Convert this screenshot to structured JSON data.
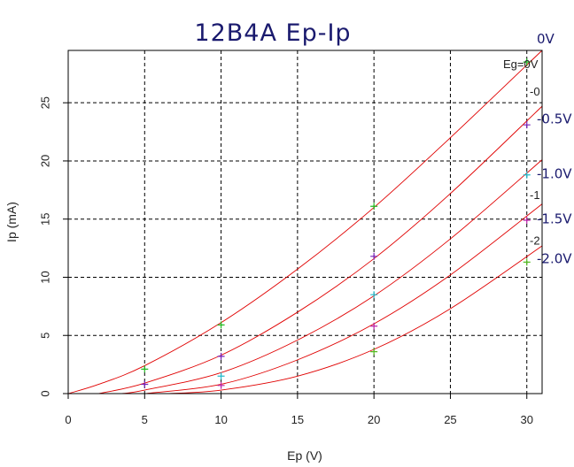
{
  "chart_data": {
    "type": "line",
    "title": "12B4A Ep-Ip",
    "xlabel": "Ep (V)",
    "ylabel": "Ip (mA)",
    "xlim": [
      0,
      31
    ],
    "ylim": [
      0,
      29.5
    ],
    "x_ticks": [
      0,
      5,
      10,
      15,
      20,
      25,
      30
    ],
    "y_ticks": [
      0,
      5,
      10,
      15,
      20,
      25
    ],
    "grid": true,
    "legend_title": "Eg=0V",
    "curve_labels": [
      {
        "text": "0V",
        "y": 30.5
      },
      {
        "text": "-0.5V",
        "y": 23.6
      },
      {
        "text": "-1.0V",
        "y": 18.9
      },
      {
        "text": "-1.5V",
        "y": 15.0
      },
      {
        "text": "-2.0V",
        "y": 11.6
      }
    ],
    "side_labels": [
      {
        "text": "-0",
        "y": 26.0
      },
      {
        "text": "-1",
        "y": 17.1
      },
      {
        "text": "-2",
        "y": 13.2
      }
    ],
    "series": [
      {
        "name": "0V",
        "color": "#22bb22",
        "x": [
          5,
          10,
          20,
          30
        ],
        "y": [
          2.1,
          5.9,
          16.1,
          28.5
        ],
        "fit_x": [
          0,
          2,
          5,
          10,
          15,
          20,
          25,
          31
        ],
        "fit_y": [
          0,
          0.8,
          2.4,
          6.1,
          10.7,
          16.0,
          22.0,
          29.5
        ]
      },
      {
        "name": "-0.5V",
        "color": "#7722bb",
        "x": [
          5,
          10,
          20,
          30
        ],
        "y": [
          0.8,
          3.2,
          11.8,
          23.1
        ],
        "fit_x": [
          2,
          5,
          10,
          15,
          20,
          25,
          31
        ],
        "fit_y": [
          0,
          0.9,
          3.3,
          7.0,
          11.6,
          17.2,
          24.7
        ]
      },
      {
        "name": "-1.0V",
        "color": "#22bbcc",
        "x": [
          10,
          20,
          30
        ],
        "y": [
          1.5,
          8.5,
          18.8
        ],
        "fit_x": [
          3.5,
          5,
          10,
          15,
          20,
          25,
          31
        ],
        "fit_y": [
          0,
          0.3,
          1.8,
          4.6,
          8.4,
          13.3,
          20.1
        ]
      },
      {
        "name": "-1.5V",
        "color": "#bb22aa",
        "x": [
          10,
          20,
          30
        ],
        "y": [
          0.7,
          5.8,
          14.9
        ],
        "fit_x": [
          5,
          10,
          15,
          20,
          25,
          31
        ],
        "fit_y": [
          0,
          0.8,
          2.9,
          6.0,
          10.2,
          16.3
        ]
      },
      {
        "name": "-2.0V",
        "color": "#55bb22",
        "x": [
          20,
          30
        ],
        "y": [
          3.6,
          11.3
        ],
        "fit_x": [
          6.5,
          10,
          15,
          20,
          25,
          31
        ],
        "fit_y": [
          0,
          0.3,
          1.5,
          3.8,
          7.3,
          12.7
        ]
      }
    ]
  }
}
